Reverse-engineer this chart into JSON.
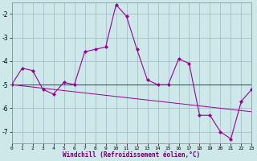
{
  "xlabel": "Windchill (Refroidissement éolien,°C)",
  "bg_color": "#cce8e8",
  "line_color": "#990099",
  "grid_color": "#99aabb",
  "x_data": [
    0,
    1,
    2,
    3,
    4,
    5,
    6,
    7,
    8,
    9,
    10,
    11,
    12,
    13,
    14,
    15,
    16,
    17,
    18,
    19,
    20,
    21,
    22,
    23
  ],
  "y_main": [
    -5.0,
    -4.3,
    -4.4,
    -5.2,
    -5.4,
    -4.9,
    -5.0,
    -3.6,
    -3.5,
    -3.4,
    -1.6,
    -2.1,
    -3.5,
    -4.8,
    -5.0,
    -5.0,
    -3.9,
    -4.1,
    -6.3,
    -6.3,
    -7.0,
    -7.3,
    -5.7,
    -5.2
  ],
  "y_horiz": [
    -5.0,
    -5.0,
    -5.0,
    -5.0,
    -5.0,
    -5.0,
    -5.0,
    -5.0,
    -5.0,
    -5.0,
    -5.0,
    -5.0,
    -5.0,
    -5.0,
    -5.0,
    -5.0,
    -5.0,
    -5.0,
    -5.0,
    -5.0,
    -5.0,
    -5.0,
    -5.0,
    -5.0
  ],
  "y_trend": [
    -5.0,
    -5.05,
    -5.1,
    -5.15,
    -5.2,
    -5.25,
    -5.3,
    -5.35,
    -5.4,
    -5.45,
    -5.5,
    -5.55,
    -5.6,
    -5.65,
    -5.7,
    -5.75,
    -5.8,
    -5.85,
    -5.9,
    -5.95,
    -6.0,
    -6.05,
    -6.1,
    -6.15
  ],
  "ylim": [
    -7.5,
    -1.5
  ],
  "xlim": [
    0,
    23
  ],
  "yticks": [
    -7,
    -6,
    -5,
    -4,
    -3,
    -2
  ],
  "xticks": [
    0,
    1,
    2,
    3,
    4,
    5,
    6,
    7,
    8,
    9,
    10,
    11,
    12,
    13,
    14,
    15,
    16,
    17,
    18,
    19,
    20,
    21,
    22,
    23
  ]
}
